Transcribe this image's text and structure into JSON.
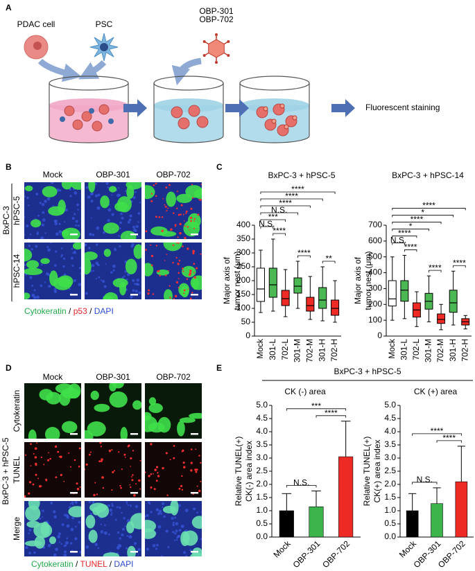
{
  "panel_labels": [
    "A",
    "B",
    "C",
    "D",
    "E"
  ],
  "schematic": {
    "cells": [
      "PDAC cell",
      "PSC"
    ],
    "virus": [
      "OBP-301",
      "OBP-702"
    ],
    "result": "Fluorescent staining"
  },
  "panel_b": {
    "columns": [
      "Mock",
      "OBP-301",
      "OBP-702"
    ],
    "rows": [
      "hPSC-5",
      "hPSC-14"
    ],
    "group": "BxPC-3",
    "legend": [
      {
        "text": "Cytokeratin",
        "color": "#22a94a"
      },
      {
        "text": " / ",
        "color": "#000000"
      },
      {
        "text": "p53",
        "color": "#e3262a"
      },
      {
        "text": " / ",
        "color": "#000000"
      },
      {
        "text": "DAPI",
        "color": "#2b4bd1"
      }
    ]
  },
  "panel_d": {
    "columns": [
      "Mock",
      "OBP-301",
      "OBP-702"
    ],
    "rows": [
      "Cytokeratin",
      "TUNEL",
      "Merge"
    ],
    "row_colors": [
      "#22a94a",
      "#e3262a",
      "#000000"
    ],
    "group": "BxPC-3 + hPSC-5",
    "legend": [
      {
        "text": "Cytokeratin",
        "color": "#22a94a"
      },
      {
        "text": " / ",
        "color": "#000000"
      },
      {
        "text": "TUNEL",
        "color": "#e3262a"
      },
      {
        "text": " / ",
        "color": "#000000"
      },
      {
        "text": "DAPI",
        "color": "#2b4bd1"
      }
    ]
  },
  "panel_e": {
    "header": "BxPC-3 + hPSC-5"
  },
  "chart_data": [
    {
      "type": "box",
      "title": "BxPC-3 + hPSC-5",
      "y_label": [
        "Major axis of",
        "tumor nest (μm)"
      ],
      "categories": [
        "Mock",
        "301-L",
        "702-L",
        "301-M",
        "702-M",
        "301-H",
        "702-H"
      ],
      "colors": [
        "#ffffff",
        "#4cb853",
        "#ee2a24",
        "#4cb853",
        "#ee2a24",
        "#4cb853",
        "#ee2a24"
      ],
      "values": [
        [
          85,
          125,
          170,
          245,
          310
        ],
        [
          90,
          140,
          185,
          245,
          350
        ],
        [
          70,
          110,
          135,
          165,
          240
        ],
        [
          100,
          155,
          180,
          210,
          270
        ],
        [
          60,
          90,
          110,
          140,
          215
        ],
        [
          55,
          100,
          130,
          175,
          250
        ],
        [
          50,
          75,
          100,
          130,
          200
        ]
      ],
      "ylim": [
        0,
        400
      ],
      "yticks": [
        0,
        50,
        100,
        150,
        200,
        250,
        300,
        350,
        400
      ],
      "annotations": [
        {
          "label": "****",
          "between": [
            "301-M",
            "702-M"
          ]
        },
        {
          "label": "****",
          "between": [
            "301-L",
            "702-L"
          ]
        },
        {
          "label": "**",
          "between": [
            "301-H",
            "702-H"
          ]
        },
        {
          "label": "N.S.",
          "between": [
            "Mock",
            "301-L"
          ]
        },
        {
          "label": "***",
          "between": [
            "Mock",
            "702-L"
          ]
        },
        {
          "label": "N.S.",
          "between": [
            "Mock",
            "301-M"
          ]
        },
        {
          "label": "****",
          "between": [
            "Mock",
            "702-M"
          ]
        },
        {
          "label": "****",
          "between": [
            "Mock",
            "301-H"
          ]
        },
        {
          "label": "****",
          "between": [
            "Mock",
            "702-H"
          ]
        }
      ]
    },
    {
      "type": "box",
      "title": "BxPC-3 + hPSC-14",
      "y_label": [
        "Major axis of",
        "tumor nest (μm)"
      ],
      "categories": [
        "Mock",
        "301-L",
        "702-L",
        "301-M",
        "702-M",
        "301-H",
        "702-H"
      ],
      "colors": [
        "#ffffff",
        "#4cb853",
        "#ee2a24",
        "#4cb853",
        "#ee2a24",
        "#4cb853",
        "#ee2a24"
      ],
      "values": [
        [
          100,
          190,
          235,
          350,
          500
        ],
        [
          110,
          220,
          290,
          350,
          510
        ],
        [
          60,
          120,
          165,
          210,
          280
        ],
        [
          90,
          170,
          220,
          270,
          380
        ],
        [
          40,
          80,
          105,
          140,
          200
        ],
        [
          70,
          150,
          210,
          290,
          410
        ],
        [
          45,
          70,
          90,
          110,
          130
        ]
      ],
      "ylim": [
        0,
        700
      ],
      "yticks": [
        0,
        100,
        200,
        300,
        400,
        500,
        600,
        700
      ],
      "annotations": [
        {
          "label": "****",
          "between": [
            "301-L",
            "702-L"
          ]
        },
        {
          "label": "****",
          "between": [
            "301-M",
            "702-M"
          ]
        },
        {
          "label": "****",
          "between": [
            "301-H",
            "702-H"
          ]
        },
        {
          "label": "N.S.",
          "between": [
            "Mock",
            "301-L"
          ]
        },
        {
          "label": "****",
          "between": [
            "Mock",
            "702-L"
          ]
        },
        {
          "label": "*",
          "between": [
            "Mock",
            "301-M"
          ]
        },
        {
          "label": "****",
          "between": [
            "Mock",
            "702-M"
          ]
        },
        {
          "label": "*",
          "between": [
            "Mock",
            "301-H"
          ]
        },
        {
          "label": "****",
          "between": [
            "Mock",
            "702-H"
          ]
        }
      ]
    },
    {
      "type": "bar",
      "title": "CK (-) area",
      "y_label": [
        "Relative TUNEL(+)",
        "CK(-) area index"
      ],
      "categories": [
        "Mock",
        "OBP-301",
        "OBP-702"
      ],
      "colors": [
        "#000000",
        "#3cb44b",
        "#ee2a24"
      ],
      "values": [
        1.0,
        1.15,
        3.05
      ],
      "errors": [
        0.65,
        0.6,
        1.35
      ],
      "ylim": [
        0,
        5
      ],
      "yticks": [
        {
          "value": 0,
          "label": "0.0"
        },
        {
          "value": 0.5,
          "label": "0.5"
        },
        {
          "value": 1,
          "label": "1.0"
        },
        {
          "value": 1.5,
          "label": "1.5"
        },
        {
          "value": 2,
          "label": "2.0"
        },
        {
          "value": 2.5,
          "label": "2.5"
        },
        {
          "value": 3,
          "label": "3.0"
        },
        {
          "value": 3.5,
          "label": "3.5"
        },
        {
          "value": 4,
          "label": "4.0"
        },
        {
          "value": 4.5,
          "label": "4.5"
        },
        {
          "value": 5,
          "label": "5.0"
        }
      ],
      "annotations": [
        {
          "label": "N.S.",
          "between": [
            "Mock",
            "OBP-301"
          ]
        },
        {
          "label": "****",
          "between": [
            "OBP-301",
            "OBP-702"
          ]
        },
        {
          "label": "***",
          "between": [
            "Mock",
            "OBP-702"
          ]
        }
      ]
    },
    {
      "type": "bar",
      "title": "CK (+) area",
      "y_label": [
        "Relative TUNEL(+)",
        "CK(+) area index"
      ],
      "categories": [
        "Mock",
        "OBP-301",
        "OBP-702"
      ],
      "colors": [
        "#000000",
        "#3cb44b",
        "#ee2a24"
      ],
      "values": [
        1.0,
        1.27,
        2.1
      ],
      "errors": [
        0.65,
        0.6,
        1.35
      ],
      "ylim": [
        0,
        5
      ],
      "yticks": [
        {
          "value": 0,
          "label": "0.0"
        },
        {
          "value": 0.5,
          "label": "0.5"
        },
        {
          "value": 1,
          "label": "1.0"
        },
        {
          "value": 1.5,
          "label": "1.5"
        },
        {
          "value": 2,
          "label": "2.0"
        },
        {
          "value": 2.5,
          "label": "2.5"
        },
        {
          "value": 3,
          "label": "3.0"
        },
        {
          "value": 3.5,
          "label": "3.5"
        },
        {
          "value": 4,
          "label": "4.0"
        },
        {
          "value": 4.5,
          "label": "4.5"
        },
        {
          "value": 5,
          "label": "5.0"
        }
      ],
      "annotations": [
        {
          "label": "N.S.",
          "between": [
            "Mock",
            "OBP-301"
          ]
        },
        {
          "label": "****",
          "between": [
            "OBP-301",
            "OBP-702"
          ]
        },
        {
          "label": "****",
          "between": [
            "Mock",
            "OBP-702"
          ]
        }
      ]
    }
  ]
}
